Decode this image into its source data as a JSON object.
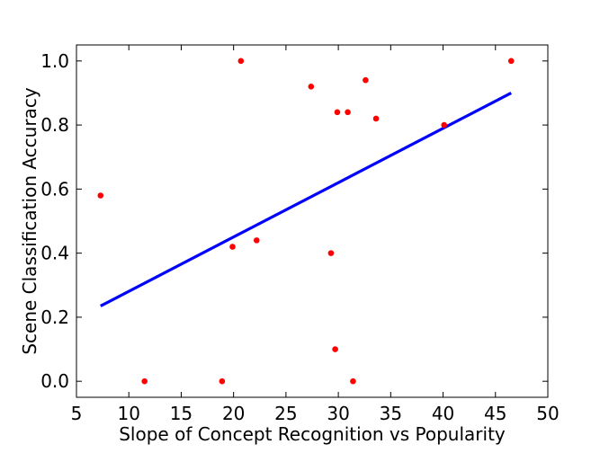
{
  "chart_data": {
    "type": "scatter",
    "title": "",
    "xlabel": "Slope of Concept Recognition vs Popularity",
    "ylabel": "Scene Classification Accuracy",
    "xlim": [
      5,
      50
    ],
    "ylim": [
      -0.05,
      1.05
    ],
    "xticks": [
      5,
      10,
      15,
      20,
      25,
      30,
      35,
      40,
      45,
      50
    ],
    "yticks": [
      0.0,
      0.2,
      0.4,
      0.6,
      0.8,
      1.0
    ],
    "xtick_labels": [
      "5",
      "10",
      "15",
      "20",
      "25",
      "30",
      "35",
      "40",
      "45",
      "50"
    ],
    "ytick_labels": [
      "0.0",
      "0.2",
      "0.4",
      "0.6",
      "0.8",
      "1.0"
    ],
    "grid": false,
    "point_color": "#ff0000",
    "line_color": "#0000ff",
    "points": [
      {
        "x": 7.3,
        "y": 0.58
      },
      {
        "x": 11.5,
        "y": 0.0
      },
      {
        "x": 18.9,
        "y": 0.0
      },
      {
        "x": 19.9,
        "y": 0.42
      },
      {
        "x": 20.7,
        "y": 1.0
      },
      {
        "x": 22.2,
        "y": 0.44
      },
      {
        "x": 27.4,
        "y": 0.92
      },
      {
        "x": 29.3,
        "y": 0.4
      },
      {
        "x": 29.7,
        "y": 0.1
      },
      {
        "x": 29.9,
        "y": 0.84
      },
      {
        "x": 30.9,
        "y": 0.84
      },
      {
        "x": 31.4,
        "y": 0.0
      },
      {
        "x": 32.6,
        "y": 0.94
      },
      {
        "x": 33.6,
        "y": 0.82
      },
      {
        "x": 40.1,
        "y": 0.8
      },
      {
        "x": 46.5,
        "y": 1.0
      }
    ],
    "fit_line": {
      "x": [
        7.3,
        46.5
      ],
      "y": [
        0.235,
        0.9
      ]
    }
  }
}
